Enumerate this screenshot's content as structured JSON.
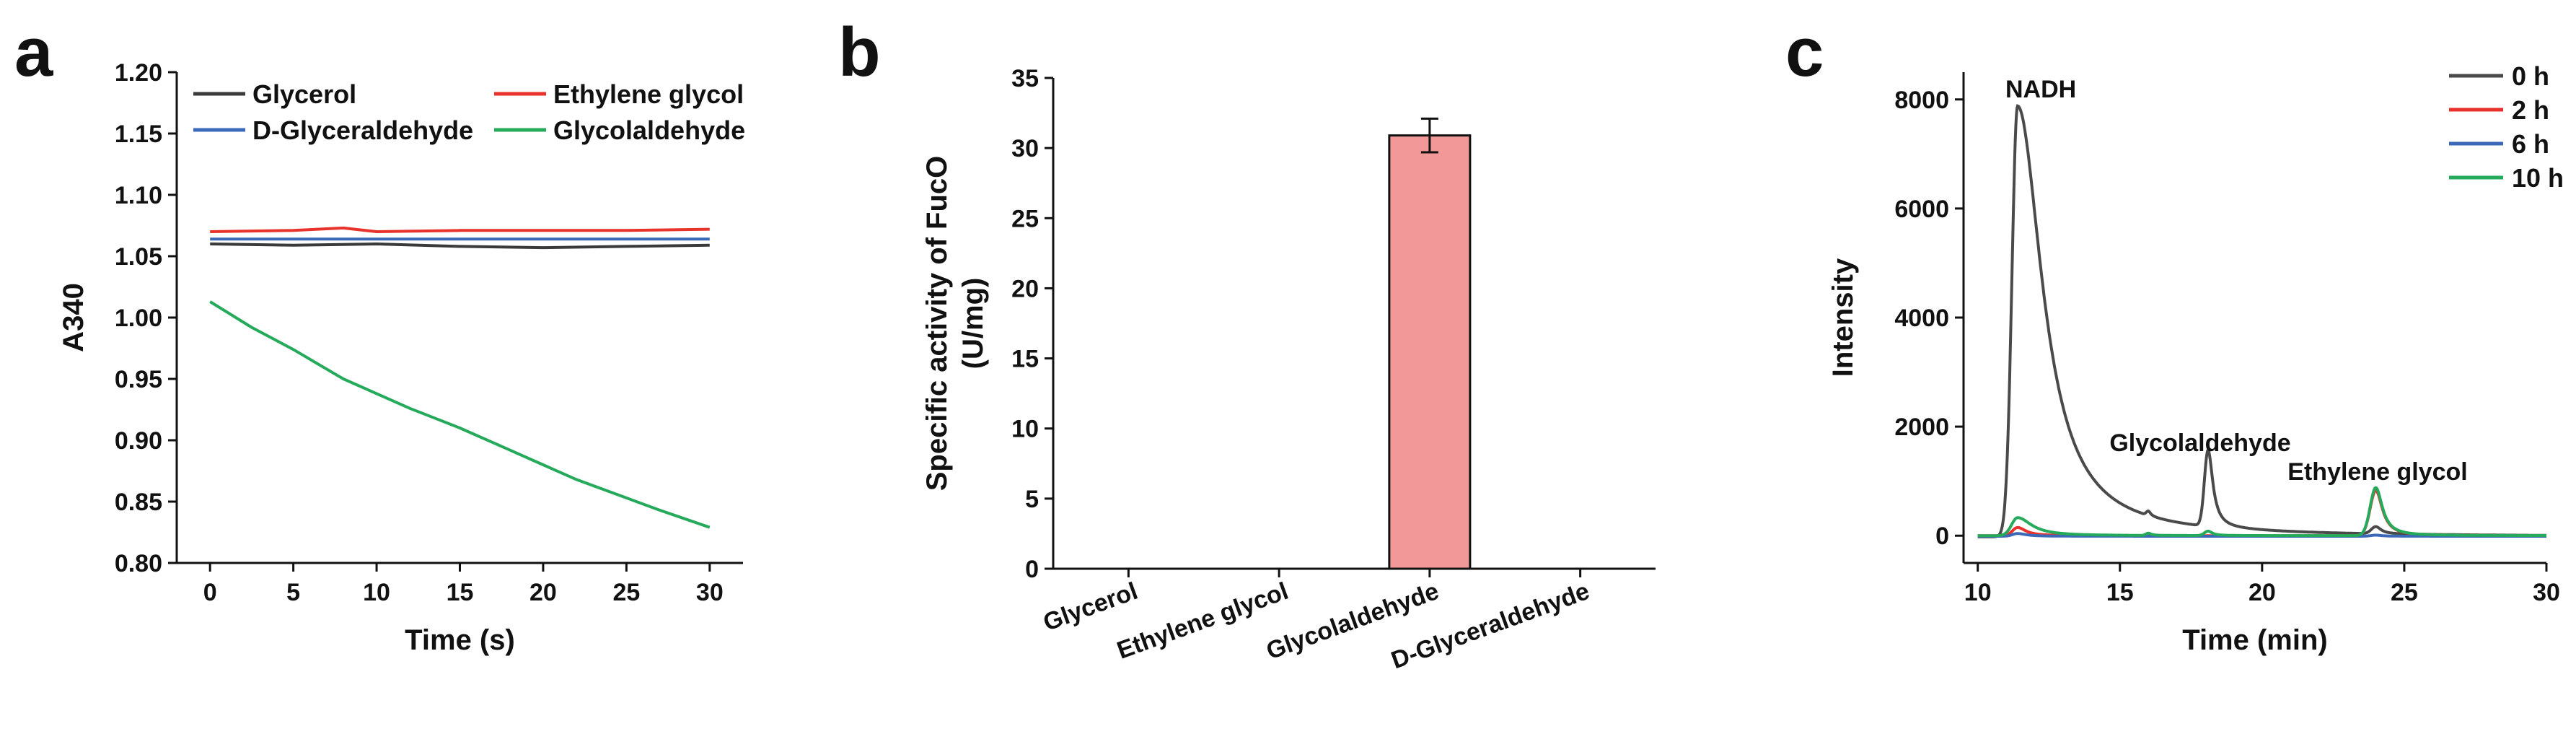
{
  "colors": {
    "glycerol": "#3a3a3a",
    "ethylene_glycol": "#e8332c",
    "d_glyceraldehyde": "#3b69b8",
    "glycolaldehyde": "#25a95a",
    "bar_fill": "#f29898",
    "h0": "#4a4a4a",
    "h2": "#e8332c",
    "h6": "#3b69b8",
    "h10": "#25a95a"
  },
  "chart_data": [
    {
      "panel": "a",
      "type": "line",
      "xlabel": "Time (s)",
      "ylabel": "A340",
      "xlim": [
        -2,
        32
      ],
      "ylim": [
        0.8,
        1.2
      ],
      "xticks": [
        "0",
        "5",
        "10",
        "15",
        "20",
        "25",
        "30"
      ],
      "yticks": [
        "0.80",
        "0.85",
        "0.90",
        "0.95",
        "1.00",
        "1.05",
        "1.10",
        "1.15",
        "1.20"
      ],
      "legend_position": "top",
      "series": [
        {
          "name": "Glycerol",
          "color_key": "glycerol",
          "x": [
            0,
            5,
            10,
            15,
            20,
            25,
            30
          ],
          "y": [
            1.06,
            1.059,
            1.06,
            1.058,
            1.057,
            1.058,
            1.059
          ]
        },
        {
          "name": "Ethylene glycol",
          "color_key": "ethylene_glycol",
          "x": [
            0,
            5,
            8,
            10,
            15,
            20,
            25,
            30
          ],
          "y": [
            1.07,
            1.071,
            1.073,
            1.07,
            1.071,
            1.071,
            1.071,
            1.072
          ]
        },
        {
          "name": "D-Glyceraldehyde",
          "color_key": "d_glyceraldehyde",
          "x": [
            0,
            5,
            10,
            15,
            20,
            25,
            30
          ],
          "y": [
            1.064,
            1.064,
            1.064,
            1.064,
            1.064,
            1.064,
            1.064
          ]
        },
        {
          "name": "Glycolaldehyde",
          "color_key": "glycolaldehyde",
          "x": [
            0,
            2.5,
            5,
            8,
            10,
            12,
            15,
            18,
            20,
            22,
            25,
            27,
            30
          ],
          "y": [
            1.013,
            0.992,
            0.974,
            0.95,
            0.938,
            0.926,
            0.91,
            0.892,
            0.88,
            0.868,
            0.853,
            0.843,
            0.829
          ]
        }
      ]
    },
    {
      "panel": "b",
      "type": "bar",
      "ylabel_line1": "Specific activity of FucO",
      "ylabel_line2": "(U/mg)",
      "ylim": [
        0,
        35
      ],
      "yticks": [
        "0",
        "5",
        "10",
        "15",
        "20",
        "25",
        "30",
        "35"
      ],
      "categories": [
        "Glycerol",
        "Ethylene glycol",
        "Glycolaldehyde",
        "D-Glyceraldehyde"
      ],
      "values": [
        0,
        0,
        30.9,
        0
      ],
      "errors": [
        0,
        0,
        1.2,
        0
      ]
    },
    {
      "panel": "c",
      "type": "line",
      "xlabel": "Time (min)",
      "ylabel": "Intensity",
      "xlim": [
        9.5,
        30
      ],
      "ylim": [
        -500,
        8500
      ],
      "xticks": [
        "10",
        "15",
        "20",
        "25",
        "30"
      ],
      "yticks": [
        "0",
        "2000",
        "4000",
        "6000",
        "8000"
      ],
      "legend_position": "top-right",
      "annotations": [
        "NADH",
        "Glycolaldehyde",
        "Ethylene glycol"
      ],
      "series": [
        {
          "name": "0 h",
          "color_key": "h0"
        },
        {
          "name": "2 h",
          "color_key": "h2"
        },
        {
          "name": "6 h",
          "color_key": "h6"
        },
        {
          "name": "10 h",
          "color_key": "h10"
        }
      ],
      "peaks": [
        {
          "series": 0,
          "base": -20,
          "peaks": [
            [
              11.4,
              7900,
              0.28,
              1.05
            ],
            [
              16.0,
              80,
              0.1,
              0.1
            ],
            [
              18.1,
              1400,
              0.18,
              0.2
            ],
            [
              24.0,
              130,
              0.22,
              0.22
            ]
          ]
        },
        {
          "series": 1,
          "base": 0,
          "peaks": [
            [
              11.4,
              150,
              0.25,
              0.35
            ],
            [
              24.0,
              830,
              0.28,
              0.28
            ]
          ]
        },
        {
          "series": 2,
          "base": -10,
          "peaks": [
            [
              11.4,
              50,
              0.25,
              0.35
            ],
            [
              24.0,
              20,
              0.25,
              0.25
            ]
          ]
        },
        {
          "series": 3,
          "base": 0,
          "peaks": [
            [
              11.4,
              330,
              0.3,
              0.6
            ],
            [
              16.0,
              40,
              0.12,
              0.12
            ],
            [
              18.1,
              80,
              0.18,
              0.18
            ],
            [
              24.0,
              880,
              0.28,
              0.28
            ]
          ]
        }
      ]
    }
  ],
  "panels": {
    "a": {
      "letter": "a"
    },
    "b": {
      "letter": "b"
    },
    "c": {
      "letter": "c"
    }
  }
}
